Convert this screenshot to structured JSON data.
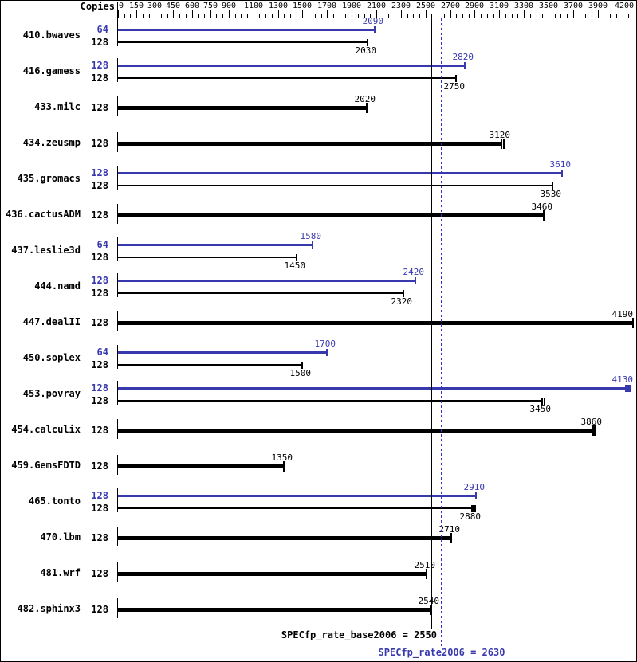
{
  "chart_data": {
    "type": "bar",
    "orientation": "horizontal",
    "copies_header": "Copies",
    "axis": {
      "min": 0,
      "max": 4200,
      "minor_tick_step": 50,
      "major_ticks": [
        0,
        150,
        300,
        450,
        600,
        750,
        900,
        1100,
        1300,
        1500,
        1700,
        1900,
        2100,
        2300,
        2500,
        2700,
        2900,
        3100,
        3300,
        3500,
        3700,
        3900,
        4200
      ]
    },
    "benchmarks": [
      {
        "name": "410.bwaves",
        "bars": [
          {
            "copies": "64",
            "kind": "peak",
            "value": 2090
          },
          {
            "copies": "128",
            "kind": "base",
            "value": 2030
          }
        ]
      },
      {
        "name": "416.gamess",
        "bars": [
          {
            "copies": "128",
            "kind": "peak",
            "value": 2820
          },
          {
            "copies": "128",
            "kind": "base",
            "value": 2750
          }
        ]
      },
      {
        "name": "433.milc",
        "bars": [
          {
            "copies": "128",
            "kind": "base",
            "value": 2020
          }
        ]
      },
      {
        "name": "434.zeusmp",
        "bars": [
          {
            "copies": "128",
            "kind": "base",
            "value": 3120,
            "run_ticks": [
              3120,
              3140
            ]
          }
        ]
      },
      {
        "name": "435.gromacs",
        "bars": [
          {
            "copies": "128",
            "kind": "peak",
            "value": 3610
          },
          {
            "copies": "128",
            "kind": "base",
            "value": 3530
          }
        ]
      },
      {
        "name": "436.cactusADM",
        "bars": [
          {
            "copies": "128",
            "kind": "base",
            "value": 3460
          }
        ]
      },
      {
        "name": "437.leslie3d",
        "bars": [
          {
            "copies": "64",
            "kind": "peak",
            "value": 1580
          },
          {
            "copies": "128",
            "kind": "base",
            "value": 1450
          }
        ]
      },
      {
        "name": "444.namd",
        "bars": [
          {
            "copies": "128",
            "kind": "peak",
            "value": 2420
          },
          {
            "copies": "128",
            "kind": "base",
            "value": 2320
          }
        ]
      },
      {
        "name": "447.dealII",
        "bars": [
          {
            "copies": "128",
            "kind": "base",
            "value": 4190
          }
        ]
      },
      {
        "name": "450.soplex",
        "bars": [
          {
            "copies": "64",
            "kind": "peak",
            "value": 1700
          },
          {
            "copies": "128",
            "kind": "base",
            "value": 1500
          }
        ]
      },
      {
        "name": "453.povray",
        "bars": [
          {
            "copies": "128",
            "kind": "peak",
            "value": 4130,
            "run_ticks": [
              4130,
              4145,
              4160
            ]
          },
          {
            "copies": "128",
            "kind": "base",
            "value": 3450,
            "run_ticks": [
              3450,
              3465
            ]
          }
        ]
      },
      {
        "name": "454.calculix",
        "bars": [
          {
            "copies": "128",
            "kind": "base",
            "value": 3860,
            "run_ticks": [
              3860,
              3875
            ]
          }
        ]
      },
      {
        "name": "459.GemsFDTD",
        "bars": [
          {
            "copies": "128",
            "kind": "base",
            "value": 1350
          }
        ]
      },
      {
        "name": "465.tonto",
        "bars": [
          {
            "copies": "128",
            "kind": "peak",
            "value": 2910
          },
          {
            "copies": "128",
            "kind": "base",
            "value": 2880,
            "run_ticks": [
              2880,
              2893,
              2906
            ]
          }
        ]
      },
      {
        "name": "470.lbm",
        "bars": [
          {
            "copies": "128",
            "kind": "base",
            "value": 2710
          }
        ]
      },
      {
        "name": "481.wrf",
        "bars": [
          {
            "copies": "128",
            "kind": "base",
            "value": 2510
          }
        ]
      },
      {
        "name": "482.sphinx3",
        "bars": [
          {
            "copies": "128",
            "kind": "base",
            "value": 2540
          }
        ]
      }
    ],
    "footer": {
      "base_label": "SPECfp_rate_base2006 = 2550",
      "base_value": 2550,
      "peak_label": "SPECfp_rate2006 = 2630",
      "peak_value": 2630
    },
    "colors": {
      "peak": "#3939ae",
      "base": "#000000",
      "dotted_line": "#3333cc"
    }
  }
}
